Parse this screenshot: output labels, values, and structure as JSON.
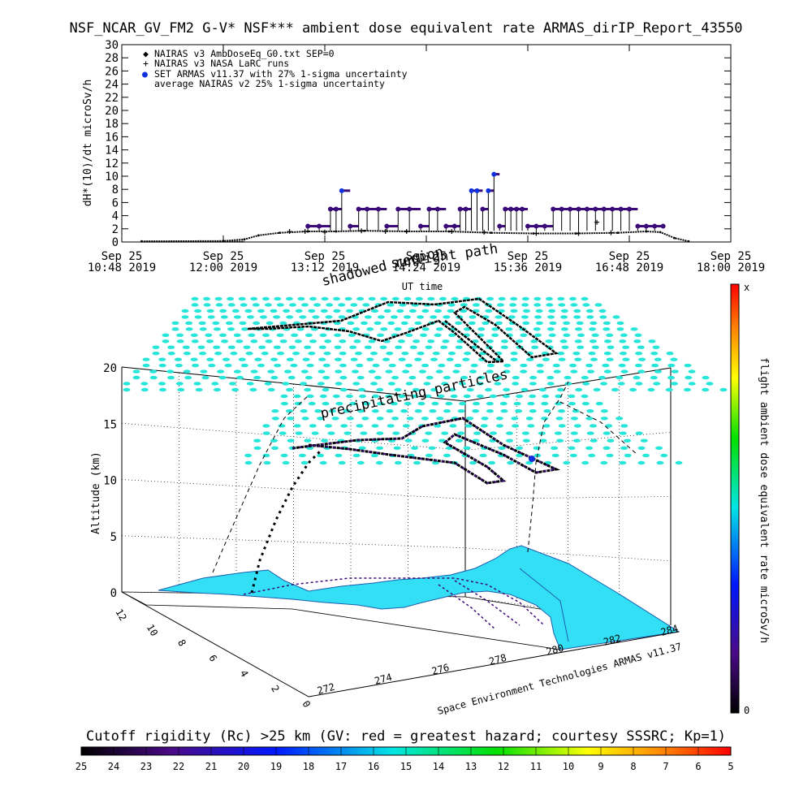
{
  "title": "NSF_NCAR_GV_FM2 G-V* NSF*** ambient dose equivalent rate ARMAS_dirIP_Report_43550",
  "colors": {
    "nairas_series": "#000000",
    "armas_series": "#3a0a78",
    "armas_peak": "#1030e0",
    "map_land": "#33dff5",
    "grid_dots": "#25e6d8"
  },
  "chart_data": [
    {
      "type": "scatter",
      "xlabel": "UT time",
      "ylabel": "dH*(10)/dt microSv/h",
      "ylim": [
        0,
        30
      ],
      "yticks": [
        "0",
        "2",
        "4",
        "6",
        "8",
        "10",
        "12",
        "14",
        "16",
        "18",
        "20",
        "22",
        "24",
        "26",
        "28",
        "30"
      ],
      "xlim": [
        "2019-09-25 10:48",
        "2019-09-25 18:00"
      ],
      "xticks": [
        {
          "top": "Sep 25",
          "bottom": "10:48 2019",
          "t": 648
        },
        {
          "top": "Sep 25",
          "bottom": "12:00 2019",
          "t": 720
        },
        {
          "top": "Sep 25",
          "bottom": "13:12 2019",
          "t": 792
        },
        {
          "top": "Sep 25",
          "bottom": "14:24 2019",
          "t": 864
        },
        {
          "top": "Sep 25",
          "bottom": "15:36 2019",
          "t": 936
        },
        {
          "top": "Sep 25",
          "bottom": "16:48 2019",
          "t": 1008
        },
        {
          "top": "Sep 25",
          "bottom": "18:00 2019",
          "t": 1080
        }
      ],
      "legend_position": "top-left",
      "legend": [
        {
          "symbol": "◆",
          "label": "NAIRAS v3 AmbDoseEq_G0.txt SEP=0"
        },
        {
          "symbol": "+",
          "label": "NAIRAS v3 NASA LaRC runs"
        },
        {
          "symbol": "●",
          "label": "SET ARMAS v11.37 with 27% 1-sigma uncertainty"
        },
        {
          "symbol": "",
          "label": "average NAIRAS v2 25% 1-sigma uncertainty"
        }
      ],
      "series": [
        {
          "name": "NAIRAS v3 AmbDoseEq_G0.txt SEP=0",
          "x_minutes": [
            662,
            720,
            735,
            745,
            760,
            780,
            800,
            820,
            850,
            880,
            910,
            940,
            970,
            1000,
            1020,
            1030,
            1040,
            1050
          ],
          "values": [
            0.1,
            0.15,
            0.4,
            1.0,
            1.4,
            1.6,
            1.6,
            1.7,
            1.6,
            1.6,
            1.4,
            1.3,
            1.3,
            1.4,
            1.6,
            1.5,
            0.6,
            0.1
          ]
        },
        {
          "name": "NAIRAS v3 NASA LaRC runs",
          "x_minutes": [
            767,
            778,
            792,
            818,
            835,
            850,
            882,
            905,
            942,
            972,
            985,
            995
          ],
          "values": [
            1.6,
            1.6,
            1.5,
            1.7,
            1.6,
            1.6,
            1.6,
            1.5,
            1.3,
            1.3,
            3.0,
            1.4
          ]
        },
        {
          "name": "SET ARMAS v11.37 with 27% 1-sigma uncertainty",
          "x_minutes": [
            780,
            788,
            796,
            800,
            804,
            810,
            816,
            822,
            830,
            836,
            844,
            852,
            860,
            866,
            872,
            878,
            884,
            888,
            892,
            896,
            900,
            904,
            908,
            912,
            916,
            920,
            924,
            928,
            932,
            936,
            942,
            948,
            954,
            960,
            966,
            972,
            978,
            984,
            990,
            996,
            1002,
            1008,
            1014,
            1020,
            1026,
            1032
          ],
          "values": [
            2.4,
            2.4,
            5.0,
            5.0,
            7.8,
            2.4,
            5.0,
            5.0,
            5.0,
            2.4,
            5.0,
            5.0,
            2.4,
            5.0,
            5.0,
            2.4,
            2.4,
            5.0,
            5.0,
            7.8,
            7.8,
            5.0,
            7.8,
            10.3,
            2.4,
            5.0,
            5.0,
            5.0,
            5.0,
            2.4,
            2.4,
            2.4,
            5.0,
            5.0,
            5.0,
            5.0,
            5.0,
            5.0,
            5.0,
            5.0,
            5.0,
            5.0,
            2.4,
            2.4,
            2.4,
            2.4
          ]
        }
      ]
    },
    {
      "type": "scatter",
      "zlabel": "Altitude (km)",
      "zticks": [
        "0",
        "5",
        "10",
        "15",
        "20"
      ],
      "longitude_ticks": [
        "272",
        "274",
        "276",
        "278",
        "280",
        "282",
        "284"
      ],
      "latitude_ticks": [
        "12",
        "10",
        "8",
        "6",
        "4",
        "2",
        "0"
      ],
      "annotations": [
        "precipitating particles",
        "shadowed region",
        "sunlight path"
      ],
      "credit": "Space Environment Technologies ARMAS v11.37",
      "color_bar": {
        "label": "flight ambient dose equivalent rate microSv/h",
        "top_label": "x",
        "bottom_label": "0"
      }
    },
    {
      "type": "heatmap",
      "title": "Cutoff rigidity (Rc) >25 km (GV: red = greatest hazard; courtesy SSSRC; Kp=1)",
      "ticks": [
        "25",
        "24",
        "23",
        "22",
        "21",
        "20",
        "19",
        "18",
        "17",
        "16",
        "15",
        "14",
        "13",
        "12",
        "11",
        "10",
        "9",
        "8",
        "7",
        "6",
        "5"
      ]
    }
  ]
}
